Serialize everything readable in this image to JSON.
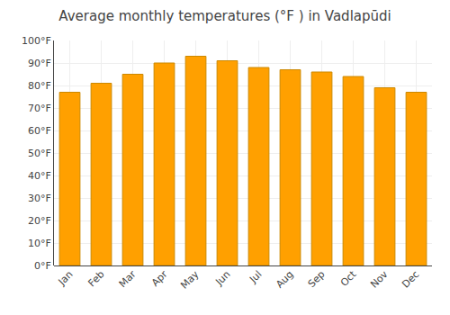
{
  "chart_data": {
    "type": "bar",
    "title": "Average monthly temperatures (°F ) in Vadlapūdi",
    "categories": [
      "Jan",
      "Feb",
      "Mar",
      "Apr",
      "May",
      "Jun",
      "Jul",
      "Aug",
      "Sep",
      "Oct",
      "Nov",
      "Dec"
    ],
    "values": [
      77,
      81,
      85,
      90,
      93,
      91,
      88,
      87,
      86,
      84,
      79,
      77
    ],
    "color": "#FFA000",
    "ylim": [
      0,
      100
    ],
    "yticks": [
      {
        "value": 0,
        "label": "0°F"
      },
      {
        "value": 10,
        "label": "10°F"
      },
      {
        "value": 20,
        "label": "20°F"
      },
      {
        "value": 30,
        "label": "30°F"
      },
      {
        "value": 40,
        "label": "40°F"
      },
      {
        "value": 50,
        "label": "50°F"
      },
      {
        "value": 60,
        "label": "60°F"
      },
      {
        "value": 70,
        "label": "70°F"
      },
      {
        "value": 80,
        "label": "80°F"
      },
      {
        "value": 90,
        "label": "90°F"
      },
      {
        "value": 100,
        "label": "100°F"
      }
    ],
    "grid": true
  }
}
